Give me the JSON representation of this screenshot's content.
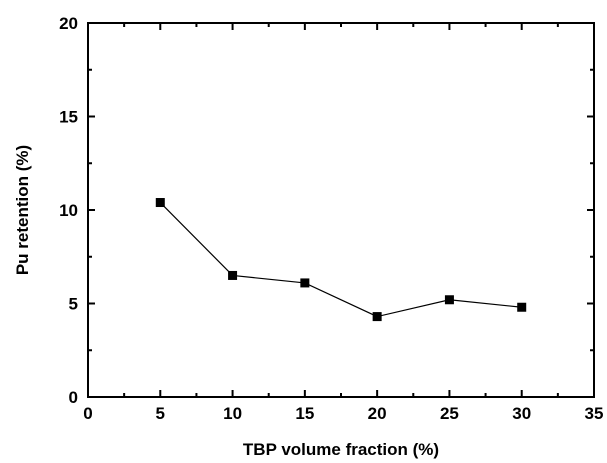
{
  "chart_data": {
    "type": "line",
    "title": "",
    "xlabel": "TBP volume fraction (%)",
    "ylabel": "Pu retention (%)",
    "xlim": [
      0,
      35
    ],
    "ylim": [
      0,
      20
    ],
    "xticks": [
      "0",
      "5",
      "10",
      "15",
      "20",
      "25",
      "30",
      "35"
    ],
    "yticks": [
      "0",
      "5",
      "10",
      "15",
      "20"
    ],
    "grid": false,
    "legend": "none",
    "series": [
      {
        "x": [
          5,
          10,
          15,
          20,
          25,
          30
        ],
        "values": [
          10.4,
          6.5,
          6.1,
          4.3,
          5.2,
          4.8
        ],
        "marker": "square",
        "color": "#000000"
      }
    ]
  }
}
